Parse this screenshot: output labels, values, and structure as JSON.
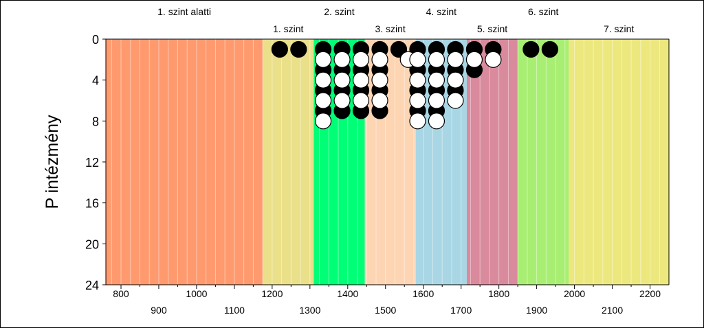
{
  "chart_data": {
    "type": "scatter",
    "title": "",
    "xlabel": "",
    "ylabel": "P intézmény",
    "xlim": [
      760,
      2250
    ],
    "ylim": [
      24,
      0
    ],
    "y_ticks": [
      "0",
      "4",
      "8",
      "12",
      "16",
      "20",
      "24"
    ],
    "x_ticks_upper": [
      "800",
      "1000",
      "1200",
      "1400",
      "1600",
      "1800",
      "2000",
      "2200"
    ],
    "x_ticks_lower": [
      "900",
      "1100",
      "1300",
      "1500",
      "1700",
      "1900",
      "2100"
    ],
    "levels": [
      {
        "label": "1. szint alatti",
        "from": 760,
        "to": 1175,
        "color": "#ff9a6e",
        "row": "upper"
      },
      {
        "label": "1. szint",
        "from": 1175,
        "to": 1310,
        "color": "#ebe08a",
        "row": "lower"
      },
      {
        "label": "2. szint",
        "from": 1310,
        "to": 1445,
        "color": "#00ff76",
        "row": "upper"
      },
      {
        "label": "3. szint",
        "from": 1445,
        "to": 1580,
        "color": "#fdd5b3",
        "row": "lower"
      },
      {
        "label": "4. szint",
        "from": 1580,
        "to": 1715,
        "color": "#a8d6e4",
        "row": "upper"
      },
      {
        "label": "5. szint",
        "from": 1715,
        "to": 1850,
        "color": "#d98a9c",
        "row": "lower"
      },
      {
        "label": "6. szint",
        "from": 1850,
        "to": 1985,
        "color": "#a8ee72",
        "row": "upper"
      },
      {
        "label": "7. szint",
        "from": 1985,
        "to": 2250,
        "color": "#ede87e",
        "row": "lower"
      }
    ],
    "series": [
      {
        "color": "black",
        "points": [
          [
            1220,
            1
          ],
          [
            1270,
            1
          ],
          [
            1335,
            1
          ],
          [
            1335,
            3
          ],
          [
            1335,
            5
          ],
          [
            1335,
            7
          ],
          [
            1385,
            1
          ],
          [
            1385,
            3
          ],
          [
            1385,
            5
          ],
          [
            1385,
            7
          ],
          [
            1435,
            1
          ],
          [
            1435,
            3
          ],
          [
            1435,
            5
          ],
          [
            1435,
            7
          ],
          [
            1485,
            1
          ],
          [
            1485,
            3
          ],
          [
            1485,
            5
          ],
          [
            1485,
            7
          ],
          [
            1535,
            1
          ],
          [
            1585,
            1
          ],
          [
            1585,
            3
          ],
          [
            1585,
            5
          ],
          [
            1585,
            7
          ],
          [
            1635,
            1
          ],
          [
            1635,
            3
          ],
          [
            1635,
            5
          ],
          [
            1635,
            7
          ],
          [
            1685,
            1
          ],
          [
            1685,
            3
          ],
          [
            1685,
            5
          ],
          [
            1735,
            1
          ],
          [
            1735,
            3
          ],
          [
            1785,
            1
          ],
          [
            1885,
            1
          ],
          [
            1935,
            1
          ]
        ]
      },
      {
        "color": "white",
        "points": [
          [
            1335,
            2
          ],
          [
            1335,
            4
          ],
          [
            1335,
            6
          ],
          [
            1335,
            8
          ],
          [
            1385,
            2
          ],
          [
            1385,
            4
          ],
          [
            1385,
            6
          ],
          [
            1435,
            2
          ],
          [
            1435,
            4
          ],
          [
            1435,
            6
          ],
          [
            1485,
            2
          ],
          [
            1485,
            4
          ],
          [
            1485,
            6
          ],
          [
            1560,
            2
          ],
          [
            1585,
            2
          ],
          [
            1585,
            4
          ],
          [
            1585,
            6
          ],
          [
            1585,
            8
          ],
          [
            1635,
            2
          ],
          [
            1635,
            4
          ],
          [
            1635,
            6
          ],
          [
            1635,
            8
          ],
          [
            1685,
            2
          ],
          [
            1685,
            4
          ],
          [
            1685,
            6
          ],
          [
            1735,
            2
          ],
          [
            1785,
            2
          ]
        ]
      }
    ]
  }
}
